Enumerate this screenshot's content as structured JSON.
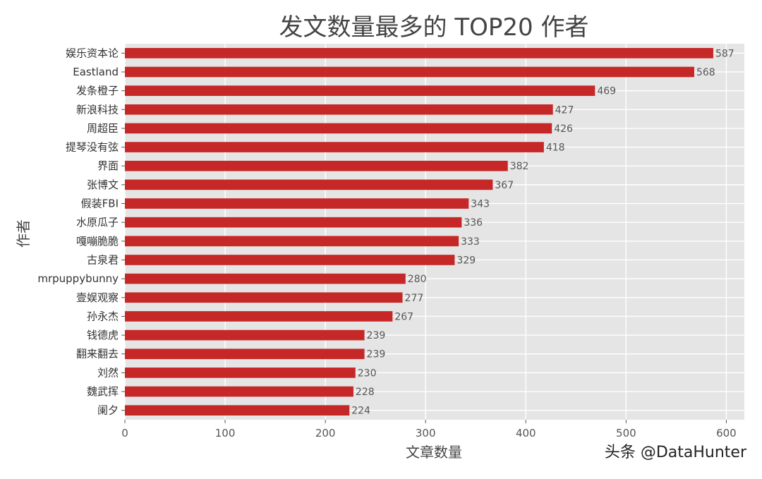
{
  "chart_data": {
    "type": "bar",
    "orientation": "horizontal",
    "title": "发文数量最多的 TOP20 作者",
    "xlabel": "文章数量",
    "ylabel": "作者",
    "categories": [
      "娱乐资本论",
      "Eastland",
      "发条橙子",
      "新浪科技",
      "周超臣",
      "提琴没有弦",
      "界面",
      "张博文",
      "假装FBI",
      "水原瓜子",
      "嘎嘣脆脆",
      "古泉君",
      "mrpuppybunny",
      "壹娱观察",
      "孙永杰",
      "钱德虎",
      "翻来翻去",
      "刘然",
      "魏武挥",
      "阑夕"
    ],
    "values": [
      587,
      568,
      469,
      427,
      426,
      418,
      382,
      367,
      343,
      336,
      333,
      329,
      280,
      277,
      267,
      239,
      239,
      230,
      228,
      224
    ],
    "xlim": [
      0,
      618
    ],
    "xticks": [
      0,
      100,
      200,
      300,
      400,
      500,
      600
    ],
    "grid": true,
    "bar_color": "#c62828",
    "plot_background": "#e5e5e5",
    "grid_color": "#ffffff"
  },
  "watermark": "头条 @DataHunter"
}
